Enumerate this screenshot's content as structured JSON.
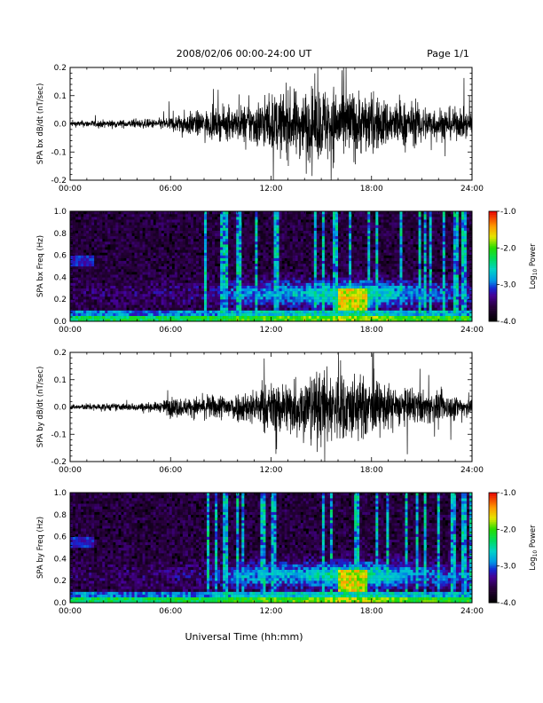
{
  "header": {
    "title": "2008/02/06  00:00-24:00 UT",
    "page": "Page 1/1"
  },
  "xlabel": "Universal Time (hh:mm)",
  "colorbar": {
    "label": "Log",
    "label_sub": "10",
    "label_tail": " Power",
    "ticks": [
      "-1.0",
      "-2.0",
      "-3.0",
      "-4.0"
    ]
  },
  "chart_data": [
    {
      "type": "line",
      "ylabel": "SPA bx dB/dt (nT/sec)",
      "xlim": [
        0,
        24
      ],
      "ylim": [
        -0.2,
        0.2
      ],
      "xticks": [
        "00:00",
        "06:00",
        "12:00",
        "18:00",
        "24:00"
      ],
      "yticks": [
        "0.2",
        "0.1",
        "0.0",
        "-0.1",
        "-0.2"
      ],
      "envelope_hours": [
        0,
        1,
        2,
        3,
        4,
        5,
        5.5,
        6,
        6.5,
        7,
        8,
        9,
        10,
        11,
        12,
        13,
        14,
        15,
        16,
        17,
        18,
        19,
        20,
        21,
        22,
        23,
        24
      ],
      "envelope_amp": [
        0.015,
        0.018,
        0.02,
        0.02,
        0.022,
        0.025,
        0.03,
        0.04,
        0.05,
        0.06,
        0.07,
        0.08,
        0.09,
        0.12,
        0.15,
        0.17,
        0.18,
        0.2,
        0.2,
        0.18,
        0.15,
        0.13,
        0.12,
        0.1,
        0.09,
        0.08,
        0.07
      ]
    },
    {
      "type": "heatmap",
      "ylabel": "SPA bx Freq (Hz)",
      "xlim": [
        0,
        24
      ],
      "ylim": [
        0.0,
        1.0
      ],
      "xticks": [
        "00:00",
        "06:00",
        "12:00",
        "18:00",
        "24:00"
      ],
      "yticks": [
        "1.0",
        "0.8",
        "0.6",
        "0.4",
        "0.2",
        "0.0"
      ],
      "zlim": [
        -4.0,
        -1.0
      ]
    },
    {
      "type": "line",
      "ylabel": "SPA by dB/dt (nT/sec)",
      "xlim": [
        0,
        24
      ],
      "ylim": [
        -0.2,
        0.2
      ],
      "xticks": [
        "00:00",
        "06:00",
        "12:00",
        "18:00",
        "24:00"
      ],
      "yticks": [
        "0.2",
        "0.1",
        "0.0",
        "-0.1",
        "-0.2"
      ],
      "envelope_hours": [
        0,
        1,
        2,
        3,
        4,
        5,
        5.5,
        6,
        6.5,
        7,
        8,
        9,
        10,
        11,
        12,
        13,
        14,
        15,
        16,
        17,
        18,
        19,
        20,
        21,
        22,
        23,
        24
      ],
      "envelope_amp": [
        0.015,
        0.018,
        0.02,
        0.02,
        0.022,
        0.025,
        0.03,
        0.06,
        0.05,
        0.05,
        0.06,
        0.07,
        0.08,
        0.1,
        0.13,
        0.15,
        0.17,
        0.2,
        0.2,
        0.18,
        0.15,
        0.12,
        0.1,
        0.09,
        0.08,
        0.07,
        0.06
      ]
    },
    {
      "type": "heatmap",
      "ylabel": "SPA by Freq (Hz)",
      "xlim": [
        0,
        24
      ],
      "ylim": [
        0.0,
        1.0
      ],
      "xticks": [
        "00:00",
        "06:00",
        "12:00",
        "18:00",
        "24:00"
      ],
      "yticks": [
        "1.0",
        "0.8",
        "0.6",
        "0.4",
        "0.2",
        "0.0"
      ],
      "zlim": [
        -4.0,
        -1.0
      ]
    }
  ]
}
